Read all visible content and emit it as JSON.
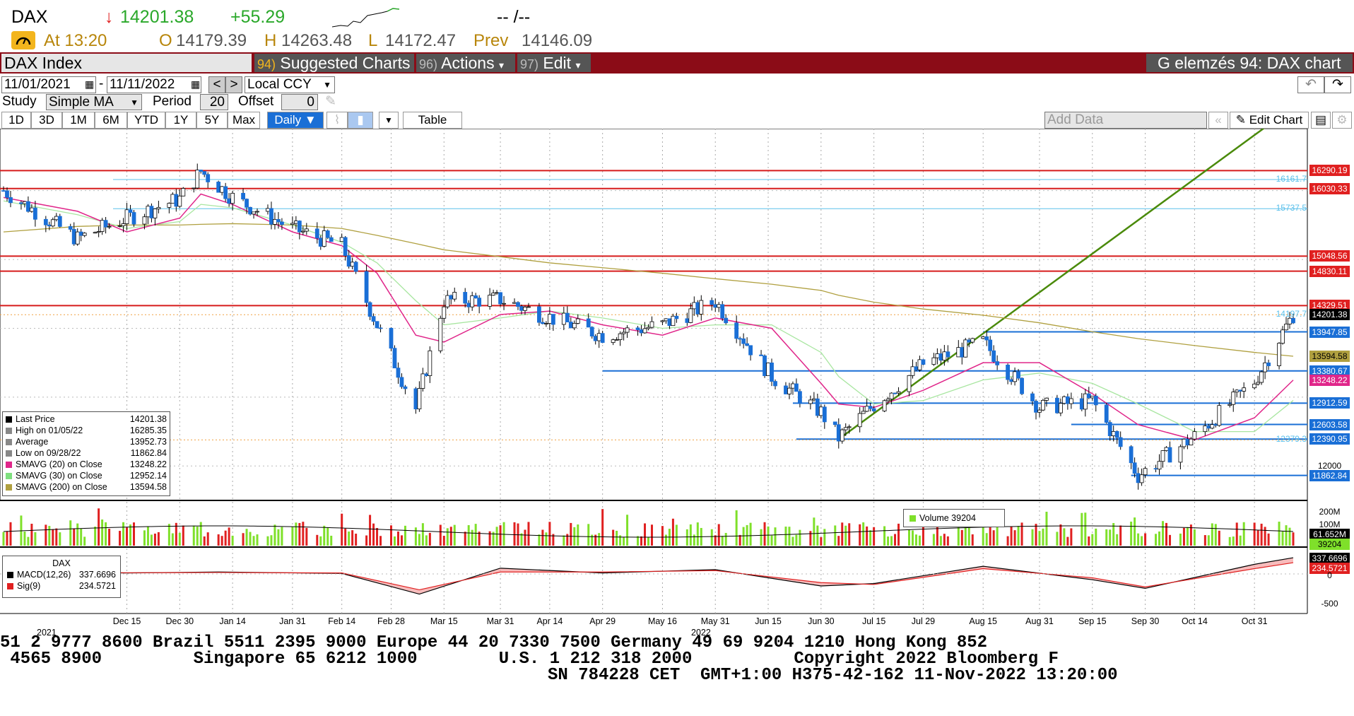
{
  "header": {
    "ticker": "DAX",
    "arrow": "↓",
    "last": "14201.38",
    "change": "+55.29",
    "time_placeholder": "-- /--",
    "at_label": "At 13:20",
    "open_label": "O",
    "open": "14179.39",
    "high_label": "H",
    "high": "14263.48",
    "low_label": "L",
    "low": "14172.47",
    "prev_label": "Prev",
    "prev": "14146.09"
  },
  "titlebar": {
    "security": "DAX Index",
    "suggested_num": "94)",
    "suggested": "Suggested Charts",
    "actions_num": "96)",
    "actions": "Actions",
    "edit_num": "97)",
    "edit": "Edit",
    "chart_title": "G elemzés 94: DAX chart"
  },
  "controls": {
    "start_date": "11/01/2021",
    "end_date": "11/11/2022",
    "currency": "Local CCY",
    "study_label": "Study",
    "study": "Simple MA",
    "period_label": "Period",
    "period": "20",
    "offset_label": "Offset",
    "offset": "0",
    "ranges": [
      "1D",
      "3D",
      "1M",
      "6M",
      "YTD",
      "1Y",
      "5Y",
      "Max"
    ],
    "frequency": "Daily",
    "table": "Table",
    "add_data_placeholder": "Add Data",
    "edit_chart": "Edit Chart"
  },
  "legend": [
    {
      "label": "Last Price",
      "value": "14201.38",
      "color": "#000000"
    },
    {
      "label": "High on 01/05/22",
      "value": "16285.35",
      "color": "#888888"
    },
    {
      "label": "Average",
      "value": "13952.73",
      "color": "#888888"
    },
    {
      "label": "Low on 09/28/22",
      "value": "11862.84",
      "color": "#888888"
    },
    {
      "label": "SMAVG (20)  on Close",
      "value": "13248.22",
      "color": "#e0268a"
    },
    {
      "label": "SMAVG (30)  on Close",
      "value": "12952.14",
      "color": "#7fe07f"
    },
    {
      "label": "SMAVG (200)  on Close",
      "value": "13594.58",
      "color": "#b0a040"
    }
  ],
  "volume_legend": "Volume 39204",
  "macd_legend": {
    "title": "DAX",
    "macd_label": "MACD(12,26)",
    "macd": "337.6696",
    "sig_label": "Sig(9)",
    "sig": "234.5721"
  },
  "price_tags": [
    {
      "value": "16290.19",
      "y": 16290,
      "bg": "#e02020",
      "fg": "#ffffff"
    },
    {
      "value": "16030.33",
      "y": 16030,
      "bg": "#e02020",
      "fg": "#ffffff"
    },
    {
      "value": "15048.56",
      "y": 15048,
      "bg": "#e02020",
      "fg": "#ffffff"
    },
    {
      "value": "14830.11",
      "y": 14830,
      "bg": "#e02020",
      "fg": "#ffffff"
    },
    {
      "value": "14329.51",
      "y": 14329,
      "bg": "#e02020",
      "fg": "#ffffff"
    },
    {
      "value": "14201.38",
      "y": 14201,
      "bg": "#000000",
      "fg": "#ffffff"
    },
    {
      "value": "13947.85",
      "y": 13947,
      "bg": "#1a6fd6",
      "fg": "#ffffff"
    },
    {
      "value": "13594.58",
      "y": 13594,
      "bg": "#b0a040",
      "fg": "#000000"
    },
    {
      "value": "13380.67",
      "y": 13380,
      "bg": "#1a6fd6",
      "fg": "#ffffff"
    },
    {
      "value": "13248.22",
      "y": 13248,
      "bg": "#e0268a",
      "fg": "#ffffff"
    },
    {
      "value": "12912.59",
      "y": 12912,
      "bg": "#1a6fd6",
      "fg": "#ffffff"
    },
    {
      "value": "12603.58",
      "y": 12603,
      "bg": "#1a6fd6",
      "fg": "#ffffff"
    },
    {
      "value": "12390.95",
      "y": 12390,
      "bg": "#1a6fd6",
      "fg": "#ffffff"
    },
    {
      "value": "11862.84",
      "y": 11862,
      "bg": "#1a6fd6",
      "fg": "#ffffff"
    }
  ],
  "fib_labels": [
    {
      "text": "16161.7",
      "y": 16161
    },
    {
      "text": "15737.5",
      "y": 15737
    },
    {
      "text": "14197.7",
      "y": 14197
    },
    {
      "text": "12379.3",
      "y": 12379
    }
  ],
  "axis": {
    "y_tick": "12000",
    "vol_ticks": [
      "200M",
      "100M"
    ],
    "vol_last": "61.652M",
    "vol_cur": "39204",
    "macd_last": "337.6696",
    "macd_sig": "234.5721",
    "macd_ticks": [
      "0",
      "-500"
    ],
    "x_labels": [
      "Dec 15",
      "Dec 30",
      "Jan 14",
      "Jan 31",
      "Feb 14",
      "Feb 28",
      "Mar 15",
      "Mar 31",
      "Apr 14",
      "Apr 29",
      "May 16",
      "May 31",
      "Jun 15",
      "Jun 30",
      "Jul 15",
      "Jul 29",
      "Aug 15",
      "Aug 31",
      "Sep 15",
      "Sep 30",
      "Oct 14",
      "Oct 31"
    ],
    "year_2021": "2021",
    "year_2022": "2022"
  },
  "chart_data": {
    "type": "line",
    "title": "DAX Index",
    "series": [
      {
        "name": "Last Price",
        "x": [
          "2021-11-10",
          "2021-12-01",
          "2021-12-15",
          "2021-12-30",
          "2022-01-05",
          "2022-01-14",
          "2022-01-31",
          "2022-02-14",
          "2022-02-24",
          "2022-03-07",
          "2022-03-15",
          "2022-03-31",
          "2022-04-14",
          "2022-04-29",
          "2022-05-16",
          "2022-05-31",
          "2022-06-16",
          "2022-06-30",
          "2022-07-05",
          "2022-07-15",
          "2022-07-29",
          "2022-08-15",
          "2022-08-31",
          "2022-09-15",
          "2022-09-28",
          "2022-10-14",
          "2022-10-31",
          "2022-11-11"
        ],
        "values": [
          16000,
          15300,
          15600,
          15880,
          16280,
          15900,
          15450,
          15200,
          14050,
          12830,
          14400,
          14420,
          14160,
          13900,
          14050,
          14390,
          13300,
          12780,
          12410,
          12890,
          13480,
          13800,
          12850,
          12950,
          11862,
          12430,
          13230,
          14201
        ]
      },
      {
        "name": "SMAVG (20)",
        "values": [
          15900,
          15700,
          15400,
          15600,
          15950,
          15800,
          15400,
          15200,
          14800,
          13900,
          13800,
          14200,
          14250,
          14050,
          13900,
          14150,
          14000,
          13200,
          12900,
          12850,
          13100,
          13500,
          13500,
          13050,
          12600,
          12380,
          12700,
          13248
        ]
      },
      {
        "name": "SMAVG (30)",
        "values": [
          15850,
          15650,
          15450,
          15550,
          15800,
          15750,
          15500,
          15250,
          14950,
          14400,
          14050,
          14150,
          14250,
          14150,
          14000,
          14050,
          14050,
          13650,
          13300,
          12900,
          12950,
          13250,
          13350,
          13200,
          12900,
          12500,
          12500,
          12952
        ]
      },
      {
        "name": "SMAVG (200)",
        "values": [
          15400,
          15480,
          15500,
          15500,
          15510,
          15520,
          15500,
          15450,
          15350,
          15230,
          15140,
          15040,
          14950,
          14880,
          14800,
          14720,
          14640,
          14550,
          14480,
          14380,
          14280,
          14190,
          14080,
          13950,
          13850,
          13750,
          13650,
          13594
        ]
      }
    ],
    "horizontal_levels": [
      16290.19,
      16030.33,
      15048.56,
      14830.11,
      14329.51,
      13947.85,
      13380.67,
      12912.59,
      12603.58,
      12390.95,
      11862.84
    ],
    "ylim": [
      11500,
      16900
    ]
  },
  "ticker_tape": {
    "line1": "51 2 9777 8600 Brazil 5511 2395 9000 Europe 44 20 7330 7500 Germany 49 69 9204 1210 Hong Kong 852",
    "line2": " 4565 8900         Singapore 65 6212 1000        U.S. 1 212 318 2000          Copyright 2022 Bloomberg F",
    "line3": "SN 784228 CET  GMT+1:00 H375-42-162 11-Nov-2022 13:20:00"
  },
  "colors": {
    "up": "#7fe02a",
    "down": "#1a6fd6",
    "red_bar": "#8b0c17",
    "green": "#2aa82a"
  }
}
